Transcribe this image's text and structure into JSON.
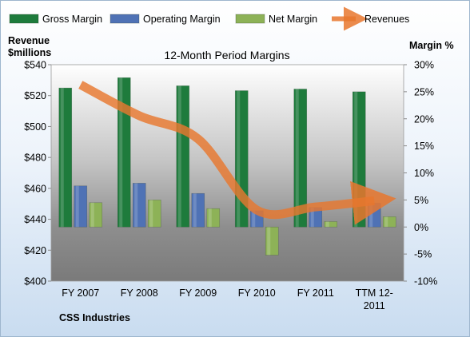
{
  "chart_data": {
    "type": "bar",
    "title": "12-Month Period Margins",
    "categories": [
      "FY 2007",
      "FY 2008",
      "FY 2009",
      "FY 2010",
      "FY 2011",
      "TTM 12-2011"
    ],
    "series": [
      {
        "name": "Gross Margin",
        "kind": "bar",
        "axis": "right",
        "color": "#1e7b3c",
        "values": [
          25.7,
          27.6,
          26.1,
          25.2,
          25.5,
          25.0
        ]
      },
      {
        "name": "Operating Margin",
        "kind": "bar",
        "axis": "right",
        "color": "#4f72b5",
        "values": [
          7.6,
          8.1,
          6.2,
          3.0,
          3.6,
          4.4
        ]
      },
      {
        "name": "Net Margin",
        "kind": "bar",
        "axis": "right",
        "color": "#8db257",
        "values": [
          4.5,
          5.0,
          3.4,
          -5.2,
          1.0,
          1.9
        ]
      },
      {
        "name": "Revenues",
        "kind": "line",
        "axis": "left",
        "color": "#e8772e",
        "values": [
          527,
          507,
          492,
          446,
          448,
          452
        ]
      }
    ],
    "y_left": {
      "label": [
        "Revenue",
        "$millions"
      ],
      "min": 400,
      "max": 540,
      "ticks": [
        "$540",
        "$520",
        "$500",
        "$480",
        "$460",
        "$440",
        "$420",
        "$400"
      ]
    },
    "y_right": {
      "label": "Margin %",
      "min": -10,
      "max": 30,
      "ticks": [
        "30%",
        "25%",
        "20%",
        "15%",
        "10%",
        "5%",
        "0%",
        "-5%",
        "-10%"
      ]
    },
    "x_tick_labels": [
      [
        "FY 2007"
      ],
      [
        "FY 2008"
      ],
      [
        "FY 2009"
      ],
      [
        "FY 2010"
      ],
      [
        "FY 2011"
      ],
      [
        "TTM 12-",
        "2011"
      ]
    ],
    "legend_position": "top",
    "grid": false
  },
  "footer": {
    "company": "CSS Industries"
  }
}
